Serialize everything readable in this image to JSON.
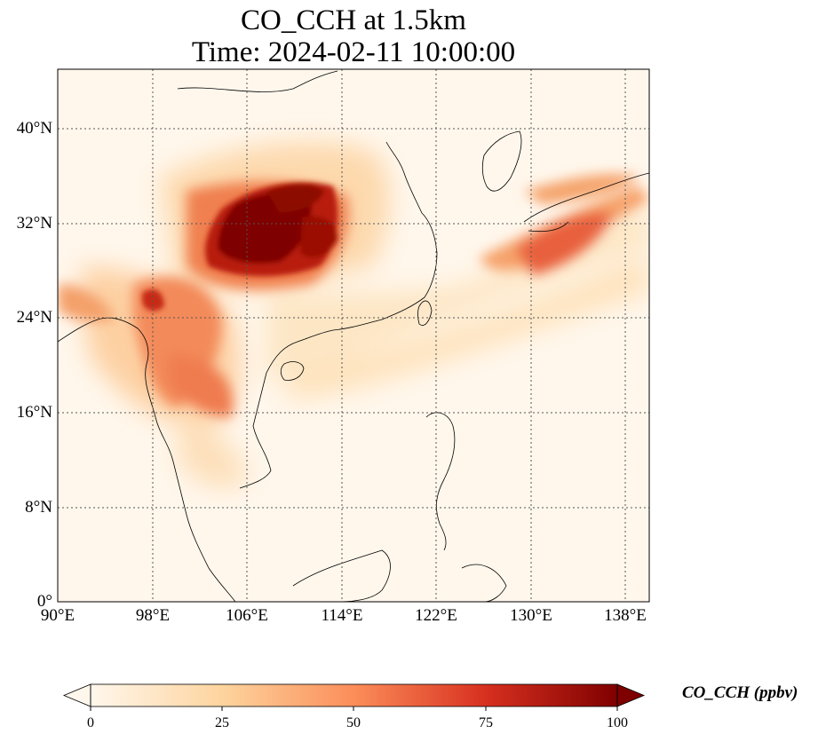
{
  "title": {
    "line1": "CO_CCH at 1.5km",
    "line2": "Time: 2024-02-11 10:00:00"
  },
  "map": {
    "projection": "PlateCarree",
    "lon_range": [
      90,
      140
    ],
    "lat_range": [
      0,
      45
    ],
    "gridlines": "dotted",
    "lat_ticks": [
      "40°N",
      "32°N",
      "24°N",
      "16°N",
      "8°N",
      "0°"
    ],
    "lon_ticks": [
      "90°E",
      "98°E",
      "106°E",
      "114°E",
      "122°E",
      "130°E",
      "138°E"
    ],
    "colormap": "OrRd",
    "colors": {
      "low": "#fff7ec",
      "mid_low": "#fdd49e",
      "mid": "#fc8d59",
      "mid_high": "#d7301f",
      "high": "#7f0000",
      "coastline": "#000000",
      "gridline": "#555555"
    }
  },
  "colorbar": {
    "label": "CO_CCH (ppbv)",
    "ticks": [
      "0",
      "25",
      "50",
      "75",
      "100"
    ],
    "range": [
      0,
      100
    ],
    "extend": "both"
  }
}
